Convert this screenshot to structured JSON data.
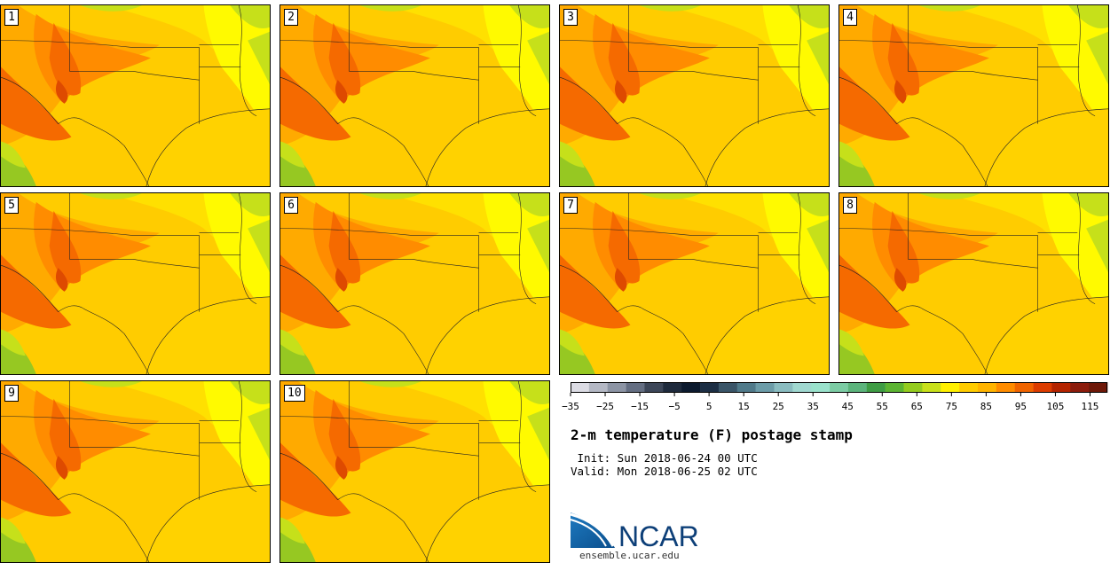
{
  "title": "2-m temperature (F) postage stamp",
  "init_line": " Init: Sun 2018-06-24 00 UTC",
  "valid_line": "Valid: Mon 2018-06-25 02 UTC",
  "logo_text": "NCAR",
  "site": "ensemble.ucar.edu",
  "members": [
    {
      "label": "1"
    },
    {
      "label": "2"
    },
    {
      "label": "3"
    },
    {
      "label": "4"
    },
    {
      "label": "5"
    },
    {
      "label": "6"
    },
    {
      "label": "7"
    },
    {
      "label": "8"
    },
    {
      "label": "9"
    },
    {
      "label": "10"
    }
  ],
  "colorbar": {
    "min": -35,
    "max": 120,
    "step": 5,
    "tick_labels": [
      "−35",
      "−25",
      "−15",
      "−5",
      "5",
      "15",
      "25",
      "35",
      "45",
      "55",
      "65",
      "75",
      "85",
      "95",
      "105",
      "115"
    ],
    "colors": [
      "#dcdce4",
      "#b4b8c4",
      "#8c94a4",
      "#646e82",
      "#3c4658",
      "#1e2a3c",
      "#0c1a2e",
      "#1c2e44",
      "#3a5568",
      "#507a8a",
      "#6c9ca8",
      "#8abcc0",
      "#a0d8d0",
      "#9ae2cc",
      "#7ccca4",
      "#5cb47c",
      "#3e9c44",
      "#5cb432",
      "#94cc1e",
      "#c8e01a",
      "#fff000",
      "#ffcc00",
      "#ffb400",
      "#ff8c00",
      "#f06400",
      "#dc3c00",
      "#b42400",
      "#8c1c0c",
      "#6e1808"
    ]
  },
  "palette": {
    "cool": "#96c822",
    "cool2": "#c6e01a",
    "yellow": "#fffa00",
    "light": "#ffe000",
    "mid": "#ffcc00",
    "warm": "#ffaa00",
    "hot": "#ff8c00",
    "hotter": "#f56a00",
    "hottest": "#de4a00",
    "gulf": "#ffd200",
    "ocean_green": "#3c8c50"
  }
}
